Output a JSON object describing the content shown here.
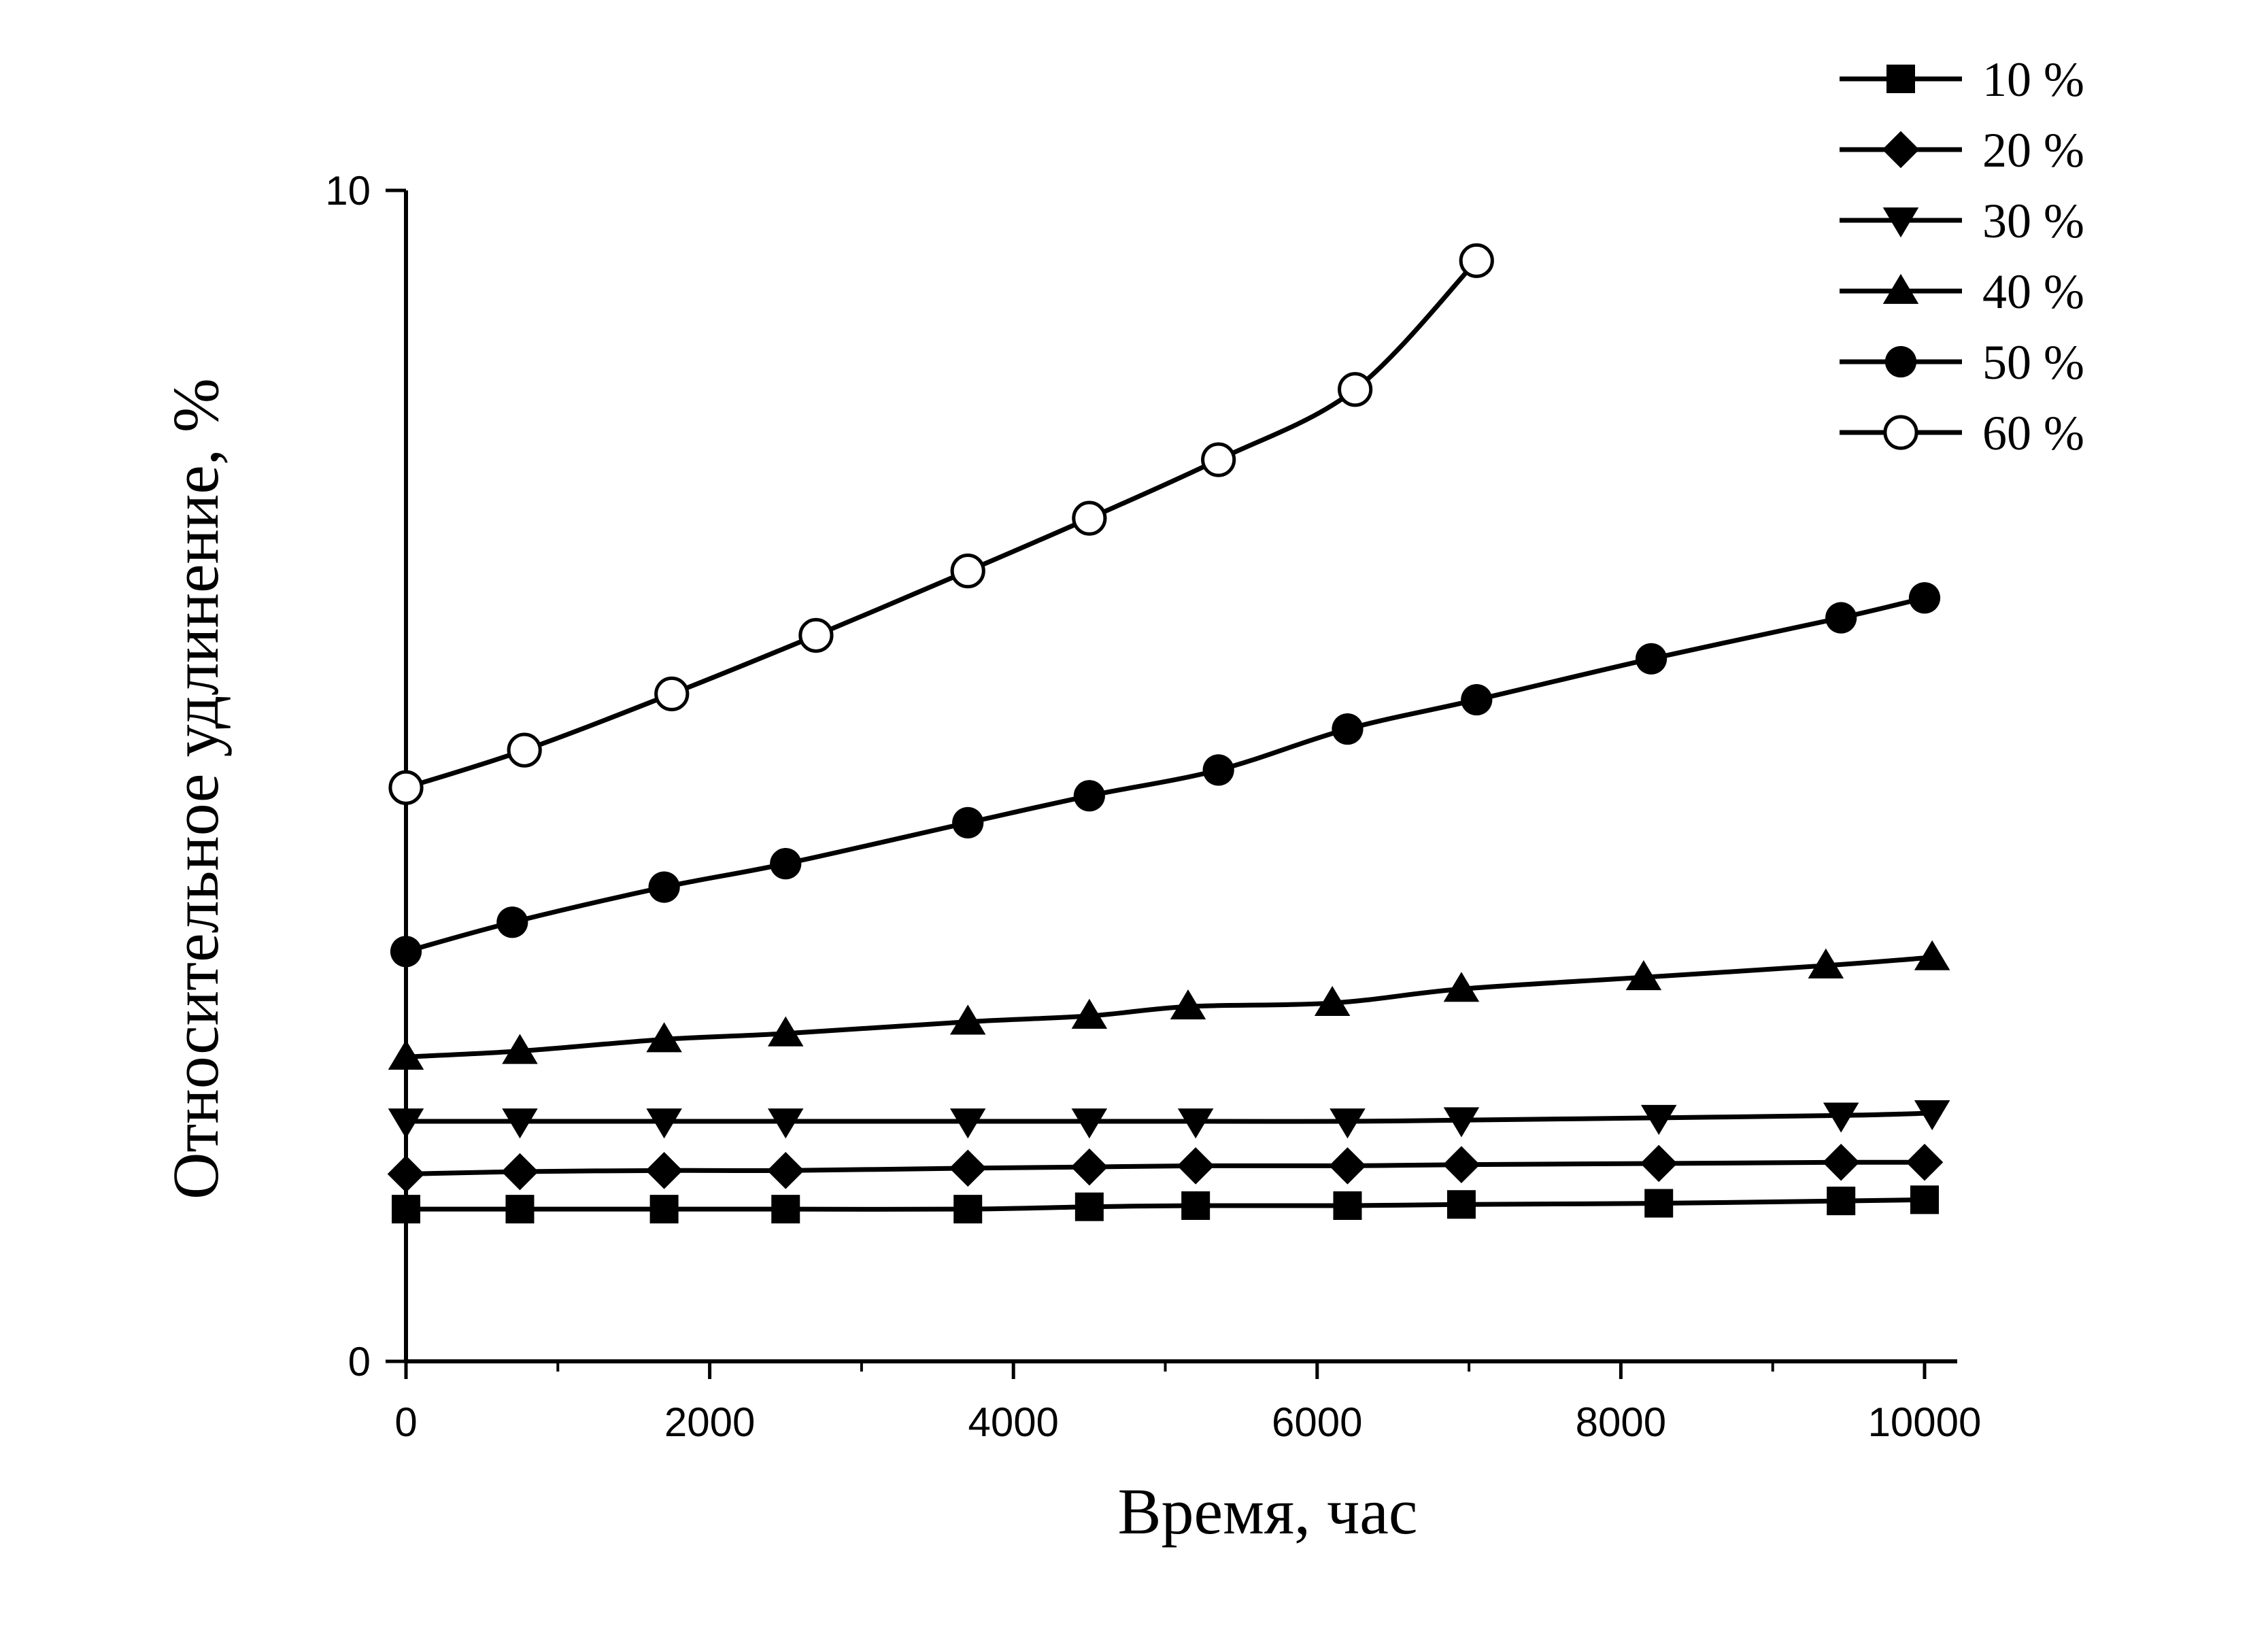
{
  "chart_data": {
    "type": "line",
    "title": "",
    "xlabel": "Время, час",
    "ylabel": "Относительное удлинение, %",
    "xlim": [
      0,
      10000
    ],
    "ylim": [
      0,
      10
    ],
    "x_ticks": [
      0,
      2000,
      4000,
      6000,
      8000,
      10000
    ],
    "x_tick_labels": [
      "0",
      "2000",
      "4000",
      "6000",
      "8000",
      "10000"
    ],
    "y_ticks": [
      0,
      10
    ],
    "y_tick_labels": [
      "0",
      "10"
    ],
    "grid": false,
    "legend_position": "top-right",
    "series": [
      {
        "name": "10 %",
        "marker": "square",
        "x": [
          0,
          750,
          1700,
          2500,
          3700,
          4500,
          5200,
          6200,
          6950,
          8250,
          9450,
          10000
        ],
        "y": [
          1.3,
          1.3,
          1.3,
          1.3,
          1.3,
          1.32,
          1.33,
          1.33,
          1.34,
          1.35,
          1.37,
          1.38
        ]
      },
      {
        "name": "20 %",
        "marker": "diamond",
        "x": [
          0,
          750,
          1700,
          2500,
          3700,
          4500,
          5200,
          6200,
          6950,
          8250,
          9450,
          10000
        ],
        "y": [
          1.6,
          1.62,
          1.63,
          1.63,
          1.65,
          1.66,
          1.67,
          1.67,
          1.68,
          1.69,
          1.7,
          1.7
        ]
      },
      {
        "name": "30 %",
        "marker": "triangle-down",
        "x": [
          0,
          750,
          1700,
          2500,
          3700,
          4500,
          5200,
          6200,
          6950,
          8250,
          9450,
          10050
        ],
        "y": [
          2.05,
          2.05,
          2.05,
          2.05,
          2.05,
          2.05,
          2.05,
          2.05,
          2.06,
          2.08,
          2.1,
          2.12
        ]
      },
      {
        "name": "40 %",
        "marker": "triangle-up",
        "x": [
          0,
          750,
          1700,
          2500,
          3700,
          4500,
          5150,
          6100,
          6950,
          8150,
          9350,
          10050
        ],
        "y": [
          2.6,
          2.65,
          2.75,
          2.8,
          2.9,
          2.95,
          3.03,
          3.06,
          3.18,
          3.28,
          3.38,
          3.45
        ]
      },
      {
        "name": "50 %",
        "marker": "circle",
        "x": [
          0,
          700,
          1700,
          2500,
          3700,
          4500,
          5350,
          6200,
          7050,
          8200,
          9450,
          10000
        ],
        "y": [
          3.5,
          3.75,
          4.05,
          4.25,
          4.6,
          4.83,
          5.05,
          5.4,
          5.65,
          6.0,
          6.35,
          6.52
        ]
      },
      {
        "name": "60 %",
        "marker": "circle-open",
        "x": [
          0,
          780,
          1750,
          2700,
          3700,
          4500,
          5350,
          6250,
          7050
        ],
        "y": [
          4.9,
          5.22,
          5.7,
          6.2,
          6.75,
          7.2,
          7.7,
          8.3,
          9.4
        ]
      }
    ]
  }
}
